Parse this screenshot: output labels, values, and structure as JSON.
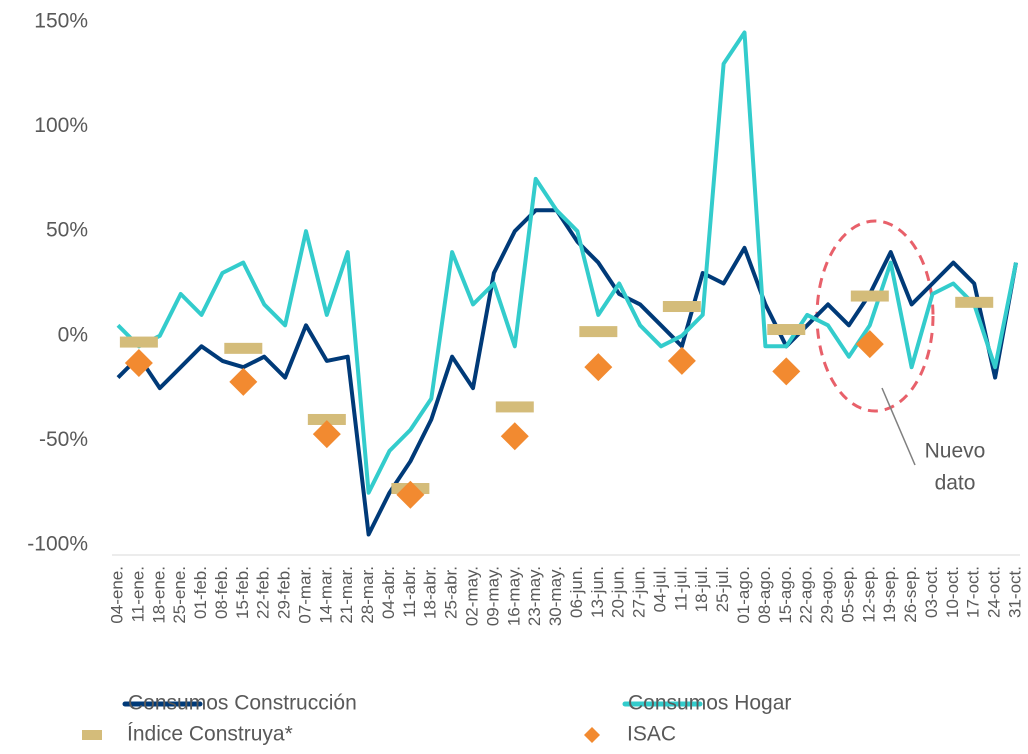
{
  "chart_data": {
    "type": "line",
    "categories": [
      "04-ene.",
      "11-ene.",
      "18-ene.",
      "25-ene.",
      "01-feb.",
      "08-feb.",
      "15-feb.",
      "22-feb.",
      "29-feb.",
      "07-mar.",
      "14-mar.",
      "21-mar.",
      "28-mar.",
      "04-abr.",
      "11-abr.",
      "18-abr.",
      "25-abr.",
      "02-may.",
      "09-may.",
      "16-may.",
      "23-may.",
      "30-may.",
      "06-jun.",
      "13-jun.",
      "20-jun.",
      "27-jun.",
      "04-jul.",
      "11-jul.",
      "18-jul.",
      "25-jul.",
      "01-ago.",
      "08-ago.",
      "15-ago.",
      "22-ago.",
      "29-ago.",
      "05-sep.",
      "12-sep.",
      "19-sep.",
      "26-sep.",
      "03-oct.",
      "10-oct.",
      "17-oct.",
      "24-oct.",
      "31-oct."
    ],
    "series": [
      {
        "name": "Consumos Construcción",
        "color": "#003a78",
        "style": "line",
        "values": [
          -20,
          -10,
          -25,
          -15,
          -5,
          -12,
          -15,
          -10,
          -20,
          5,
          -12,
          -10,
          -95,
          -75,
          -60,
          -40,
          -10,
          -25,
          30,
          50,
          60,
          60,
          45,
          35,
          20,
          15,
          5,
          -5,
          30,
          25,
          42,
          15,
          -5,
          5,
          15,
          5,
          20,
          40,
          15,
          25,
          35,
          25,
          -20,
          35
        ]
      },
      {
        "name": "Consumos Hogar",
        "color": "#33cccc",
        "style": "line",
        "values": [
          5,
          -5,
          0,
          20,
          10,
          30,
          35,
          15,
          5,
          50,
          10,
          40,
          -75,
          -55,
          -45,
          -30,
          40,
          15,
          25,
          -5,
          75,
          60,
          50,
          10,
          25,
          5,
          -5,
          0,
          10,
          130,
          145,
          -5,
          -5,
          10,
          5,
          -10,
          5,
          35,
          -15,
          20,
          25,
          15,
          -15,
          35
        ]
      },
      {
        "name": "Índice Construya*",
        "color": "#d4bc7a",
        "style": "dash",
        "values": [
          null,
          -3,
          null,
          null,
          null,
          null,
          -6,
          null,
          null,
          null,
          -40,
          null,
          null,
          null,
          -73,
          null,
          null,
          null,
          null,
          -34,
          null,
          null,
          null,
          2,
          null,
          null,
          null,
          14,
          null,
          null,
          null,
          null,
          3,
          null,
          null,
          null,
          19,
          null,
          null,
          null,
          null,
          16,
          null,
          null
        ]
      },
      {
        "name": "ISAC",
        "color": "#f28a30",
        "style": "diamond",
        "values": [
          null,
          -13,
          null,
          null,
          null,
          null,
          -22,
          null,
          null,
          null,
          -47,
          null,
          null,
          null,
          -76,
          null,
          null,
          null,
          null,
          -48,
          null,
          null,
          null,
          -15,
          null,
          null,
          null,
          -12,
          null,
          null,
          null,
          null,
          -17,
          null,
          null,
          null,
          -4,
          null,
          null,
          null,
          null,
          null,
          null,
          null
        ]
      }
    ],
    "ylim": [
      -100,
      150
    ],
    "yticks": [
      {
        "value": -100,
        "label": "-100%"
      },
      {
        "value": -50,
        "label": "-50%"
      },
      {
        "value": 0,
        "label": "0%"
      },
      {
        "value": 50,
        "label": "50%"
      },
      {
        "value": 100,
        "label": "100%"
      },
      {
        "value": 150,
        "label": "150%"
      }
    ],
    "annotation": [
      "Nuevo",
      "dato"
    ]
  }
}
